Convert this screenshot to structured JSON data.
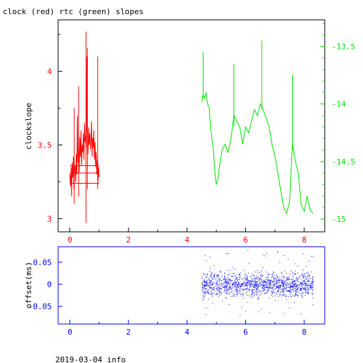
{
  "title": "clock (red) rtc (green) slopes",
  "footer": "2019-03-04 info",
  "colors": {
    "clock": "#ff0000",
    "rtc": "#00e000",
    "offset": "#0000ff",
    "frame": "#000000"
  },
  "chart_data": [
    {
      "type": "line",
      "title": "clock (red) rtc (green) slopes",
      "ylabel": "clockslope",
      "xlim": [
        -0.4,
        8.7
      ],
      "ylim": [
        2.91,
        4.35
      ],
      "xticks": [
        "0",
        "2",
        "4",
        "6",
        "8"
      ],
      "yticks_left": [
        "3",
        "3.5",
        "4"
      ],
      "y2lim": [
        -15.11,
        -13.27
      ],
      "yticks_right": [
        "-15",
        "-14.5",
        "-14",
        "-13.5"
      ],
      "series": [
        {
          "name": "clock",
          "axis": "left",
          "x": [
            0.0,
            0.02,
            0.04,
            0.06,
            0.08,
            0.1,
            0.12,
            0.14,
            0.16,
            0.18,
            0.2,
            0.22,
            0.24,
            0.26,
            0.28,
            0.3,
            0.32,
            0.34,
            0.36,
            0.38,
            0.4,
            0.42,
            0.44,
            0.46,
            0.48,
            0.5,
            0.52,
            0.54,
            0.56,
            0.58,
            0.6,
            0.62,
            0.64,
            0.66,
            0.68,
            0.7,
            0.72,
            0.74,
            0.76,
            0.78,
            0.8,
            0.82,
            0.84,
            0.86,
            0.88,
            0.9,
            0.92,
            0.94,
            0.96,
            0.98,
            1.0
          ],
          "y": [
            3.3,
            3.22,
            3.35,
            3.15,
            3.38,
            3.28,
            3.42,
            3.2,
            3.33,
            3.36,
            3.25,
            3.44,
            3.3,
            3.7,
            3.38,
            3.48,
            3.31,
            3.55,
            3.42,
            3.6,
            3.36,
            3.5,
            3.45,
            3.58,
            3.4,
            3.65,
            3.52,
            3.56,
            3.48,
            4.1,
            3.55,
            3.44,
            3.62,
            3.5,
            3.58,
            3.47,
            3.53,
            3.66,
            3.42,
            3.55,
            3.48,
            3.6,
            3.4,
            3.52,
            3.35,
            3.45,
            3.3,
            3.4,
            3.25,
            3.35,
            3.28
          ]
        },
        {
          "name": "rtc",
          "axis": "right",
          "x": [
            4.5,
            4.55,
            4.6,
            4.65,
            4.7,
            4.75,
            4.8,
            4.85,
            4.9,
            4.95,
            5.0,
            5.05,
            5.1,
            5.15,
            5.2,
            5.3,
            5.4,
            5.5,
            5.6,
            5.7,
            5.8,
            5.9,
            6.0,
            6.1,
            6.2,
            6.3,
            6.4,
            6.5,
            6.6,
            6.7,
            6.8,
            6.9,
            7.0,
            7.1,
            7.2,
            7.3,
            7.4,
            7.5,
            7.6,
            7.7,
            7.8,
            7.9,
            8.0,
            8.1,
            8.2,
            8.3
          ],
          "y": [
            -13.98,
            -13.92,
            -13.95,
            -13.9,
            -14.0,
            -14.02,
            -14.2,
            -14.3,
            -14.4,
            -14.6,
            -14.7,
            -14.65,
            -14.55,
            -14.48,
            -14.4,
            -14.35,
            -14.42,
            -14.3,
            -14.1,
            -14.15,
            -14.2,
            -14.35,
            -14.2,
            -14.25,
            -14.15,
            -14.05,
            -14.1,
            -14.0,
            -14.05,
            -14.12,
            -14.2,
            -14.35,
            -14.45,
            -14.6,
            -14.75,
            -14.9,
            -14.95,
            -14.85,
            -14.35,
            -14.5,
            -14.6,
            -14.88,
            -14.93,
            -14.8,
            -14.92,
            -14.95
          ]
        }
      ]
    },
    {
      "type": "scatter",
      "ylabel": "offset(ms)",
      "xlim": [
        -0.4,
        8.7
      ],
      "ylim": [
        -0.09,
        0.085
      ],
      "xticks": [
        "0",
        "2",
        "4",
        "6",
        "8"
      ],
      "yticks": [
        "-0.05",
        "0",
        "0.05"
      ],
      "series": [
        {
          "name": "offset",
          "x_range": [
            4.5,
            8.3
          ],
          "center": 0.0,
          "band": [
            -0.02,
            0.02
          ],
          "outlier_range": [
            -0.07,
            0.08
          ]
        }
      ]
    }
  ]
}
